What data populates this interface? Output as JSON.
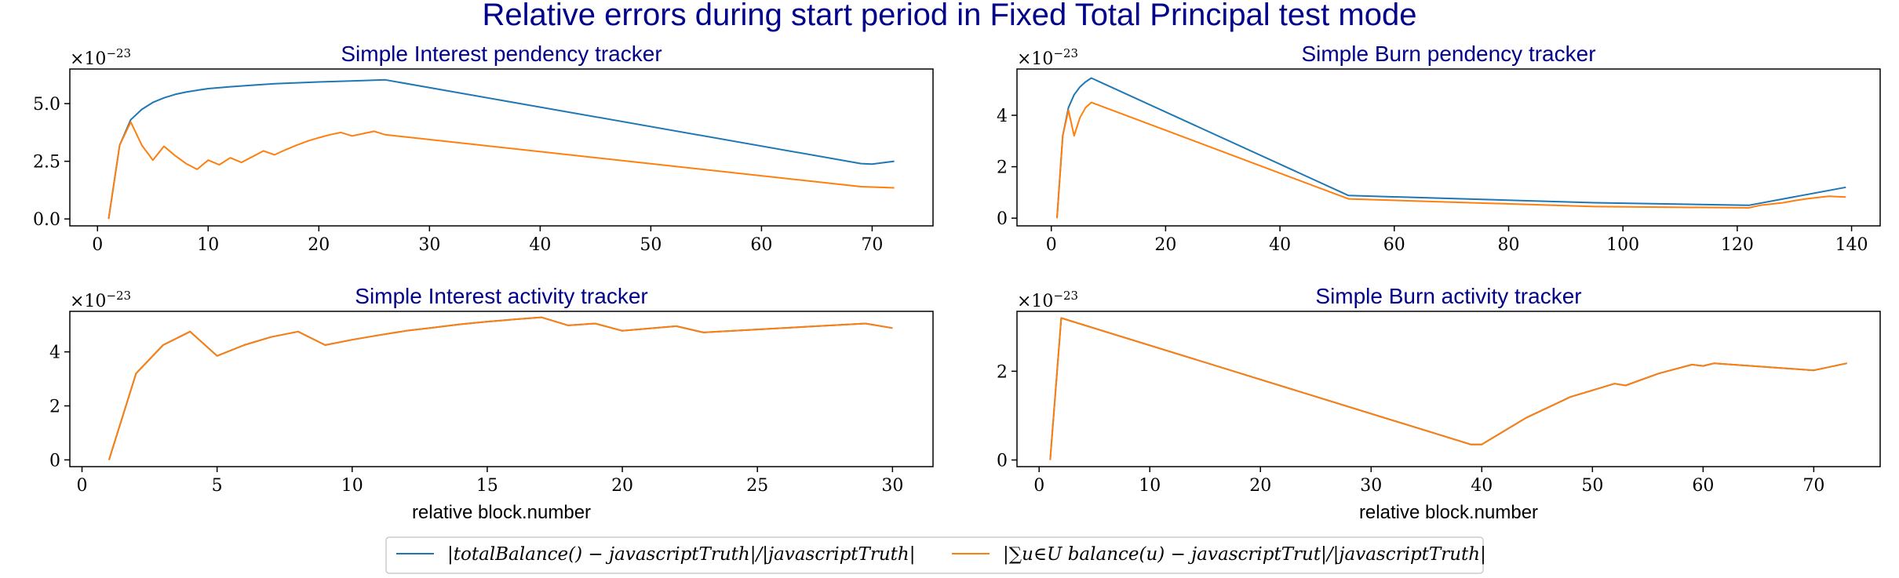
{
  "suptitle": "Relative errors during start period in Fixed Total Principal test mode",
  "colors": {
    "series1": "#1f77b4",
    "series2": "#ff7f0e",
    "title": "#00008b"
  },
  "legend": {
    "placement": "bottom-center",
    "entries": [
      {
        "label": "|totalBalance() − javascriptTruth|/|javascriptTruth|",
        "color": "#1f77b4"
      },
      {
        "label": "|∑u∈U balance(u) − javascriptTrut|/|javascriptTruth|",
        "color": "#ff7f0e"
      }
    ]
  },
  "chart_data": [
    {
      "type": "line",
      "title": "Simple Interest pendency tracker",
      "xlabel": "",
      "ylabel": "",
      "multiplier": {
        "base": "×10",
        "exponent": "−23"
      },
      "xlim": [
        -2.5,
        75.5
      ],
      "ylim": [
        -0.3,
        6.5
      ],
      "xticks": [
        0,
        10,
        20,
        30,
        40,
        50,
        60,
        70
      ],
      "yticks": [
        0.0,
        2.5,
        5.0
      ],
      "ytick_labels": [
        "0.0",
        "2.5",
        "5.0"
      ],
      "series": [
        {
          "x": [
            1,
            2,
            3,
            4,
            5,
            6,
            7,
            8,
            9,
            10,
            12,
            14,
            16,
            18,
            20,
            22,
            24,
            26,
            69,
            70,
            72
          ],
          "y": [
            0,
            3.2,
            4.3,
            4.75,
            5.05,
            5.25,
            5.4,
            5.5,
            5.58,
            5.65,
            5.73,
            5.8,
            5.86,
            5.9,
            5.94,
            5.97,
            6.0,
            6.03,
            2.4,
            2.38,
            2.5
          ]
        },
        {
          "x": [
            1,
            2,
            3,
            4,
            5,
            6,
            7,
            8,
            9,
            10,
            11,
            12,
            13,
            14,
            15,
            16,
            17,
            18,
            19,
            20,
            21,
            22,
            23,
            24,
            25,
            26,
            69,
            72
          ],
          "y": [
            0,
            3.2,
            4.2,
            3.2,
            2.55,
            3.15,
            2.75,
            2.4,
            2.15,
            2.55,
            2.35,
            2.65,
            2.45,
            2.7,
            2.95,
            2.78,
            3.0,
            3.2,
            3.38,
            3.52,
            3.65,
            3.75,
            3.6,
            3.7,
            3.8,
            3.65,
            1.4,
            1.35
          ]
        }
      ]
    },
    {
      "type": "line",
      "title": "Simple Burn pendency tracker",
      "xlabel": "",
      "ylabel": "",
      "multiplier": {
        "base": "×10",
        "exponent": "−23"
      },
      "xlim": [
        -6,
        145
      ],
      "ylim": [
        -0.3,
        5.8
      ],
      "xticks": [
        0,
        20,
        40,
        60,
        80,
        100,
        120,
        140
      ],
      "yticks": [
        0,
        2,
        4
      ],
      "ytick_labels": [
        "0",
        "2",
        "4"
      ],
      "series": [
        {
          "x": [
            1,
            2,
            3,
            4,
            5,
            6,
            7,
            52,
            95,
            122,
            139
          ],
          "y": [
            0,
            3.2,
            4.3,
            4.8,
            5.1,
            5.3,
            5.45,
            0.88,
            0.6,
            0.5,
            1.2
          ]
        },
        {
          "x": [
            1,
            2,
            3,
            4,
            5,
            6,
            7,
            52,
            95,
            122,
            124,
            126,
            128,
            130,
            132,
            134,
            136,
            139
          ],
          "y": [
            0,
            3.2,
            4.2,
            3.2,
            3.9,
            4.3,
            4.5,
            0.75,
            0.45,
            0.4,
            0.5,
            0.55,
            0.6,
            0.68,
            0.75,
            0.8,
            0.85,
            0.82
          ]
        }
      ]
    },
    {
      "type": "line",
      "title": "Simple Interest activity tracker",
      "xlabel": "relative block.number",
      "ylabel": "",
      "multiplier": {
        "base": "×10",
        "exponent": "−23"
      },
      "xlim": [
        -0.45,
        31.5
      ],
      "ylim": [
        -0.25,
        5.5
      ],
      "xticks": [
        0,
        5,
        10,
        15,
        20,
        25,
        30
      ],
      "yticks": [
        0,
        2,
        4
      ],
      "ytick_labels": [
        "0",
        "2",
        "4"
      ],
      "series": [
        {
          "x": [
            1,
            2,
            3,
            4,
            5,
            6,
            7,
            8,
            9,
            10,
            11,
            12,
            13,
            14,
            15,
            16,
            17,
            18,
            19,
            20,
            22,
            23,
            29,
            30
          ],
          "y": [
            0,
            3.2,
            4.25,
            4.75,
            3.85,
            4.25,
            4.55,
            4.75,
            4.25,
            4.45,
            4.62,
            4.78,
            4.9,
            5.02,
            5.12,
            5.2,
            5.28,
            4.98,
            5.05,
            4.78,
            4.95,
            4.72,
            5.05,
            4.88
          ]
        },
        {
          "x": [
            1,
            2,
            3,
            4,
            5,
            6,
            7,
            8,
            9,
            10,
            11,
            12,
            13,
            14,
            15,
            16,
            17,
            18,
            19,
            20,
            22,
            23,
            29,
            30
          ],
          "y": [
            0,
            3.2,
            4.25,
            4.75,
            3.85,
            4.25,
            4.55,
            4.75,
            4.25,
            4.45,
            4.62,
            4.78,
            4.9,
            5.02,
            5.12,
            5.2,
            5.28,
            4.98,
            5.05,
            4.78,
            4.95,
            4.72,
            5.05,
            4.88
          ]
        }
      ]
    },
    {
      "type": "line",
      "title": "Simple Burn activity tracker",
      "xlabel": "relative block.number",
      "ylabel": "",
      "multiplier": {
        "base": "×10",
        "exponent": "−23"
      },
      "xlim": [
        -2,
        76
      ],
      "ylim": [
        -0.15,
        3.35
      ],
      "xticks": [
        0,
        10,
        20,
        30,
        40,
        50,
        60,
        70
      ],
      "yticks": [
        0,
        2
      ],
      "ytick_labels": [
        "0",
        "2"
      ],
      "series": [
        {
          "x": [
            1,
            2,
            39,
            40,
            44,
            48,
            52,
            53,
            56,
            59,
            60,
            61,
            70,
            73
          ],
          "y": [
            0,
            3.2,
            0.35,
            0.35,
            0.95,
            1.42,
            1.72,
            1.68,
            1.95,
            2.15,
            2.12,
            2.18,
            2.02,
            2.18
          ]
        },
        {
          "x": [
            1,
            2,
            39,
            40,
            44,
            48,
            52,
            53,
            56,
            59,
            60,
            61,
            70,
            73
          ],
          "y": [
            0,
            3.2,
            0.35,
            0.35,
            0.95,
            1.42,
            1.72,
            1.68,
            1.95,
            2.15,
            2.12,
            2.18,
            2.02,
            2.18
          ]
        }
      ]
    }
  ]
}
